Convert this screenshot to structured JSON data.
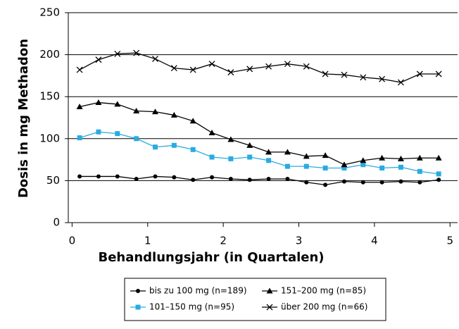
{
  "chart_data": {
    "type": "line",
    "x_label": "Behandlungsjahr (in Quartalen)",
    "y_label": "Dosis in mg Methadon",
    "x": [
      0.1,
      0.35,
      0.6,
      0.85,
      1.1,
      1.35,
      1.6,
      1.85,
      2.1,
      2.35,
      2.6,
      2.85,
      3.1,
      3.35,
      3.6,
      3.85,
      4.1,
      4.35,
      4.6,
      4.85
    ],
    "xlim": [
      -0.05,
      5.1
    ],
    "xticks": [
      0,
      1,
      2,
      3,
      4,
      5
    ],
    "ylim": [
      0,
      250
    ],
    "yticks": [
      0,
      50,
      100,
      150,
      200,
      250
    ],
    "grid": true,
    "series": [
      {
        "name": "bis zu 100 mg (n=189)",
        "color": "#000000",
        "marker": "circle",
        "values": [
          55,
          55,
          55,
          52,
          55,
          54,
          51,
          54,
          52,
          51,
          52,
          52,
          48,
          45,
          49,
          48,
          48,
          49,
          48,
          51
        ]
      },
      {
        "name": "101–150 mg (n=95)",
        "color": "#29abe2",
        "marker": "square",
        "values": [
          101,
          108,
          106,
          100,
          90,
          92,
          87,
          78,
          76,
          78,
          74,
          67,
          67,
          65,
          65,
          69,
          65,
          66,
          61,
          58
        ]
      },
      {
        "name": "151–200 mg (n=85)",
        "color": "#000000",
        "marker": "triangle",
        "values": [
          138,
          143,
          141,
          133,
          132,
          128,
          121,
          107,
          99,
          92,
          84,
          84,
          79,
          80,
          69,
          74,
          77,
          76,
          77,
          77
        ]
      },
      {
        "name": "über 200 mg (n=66)",
        "color": "#000000",
        "marker": "x",
        "values": [
          182,
          194,
          201,
          202,
          195,
          184,
          182,
          189,
          179,
          183,
          186,
          189,
          186,
          177,
          176,
          173,
          171,
          167,
          177,
          177
        ]
      }
    ]
  }
}
